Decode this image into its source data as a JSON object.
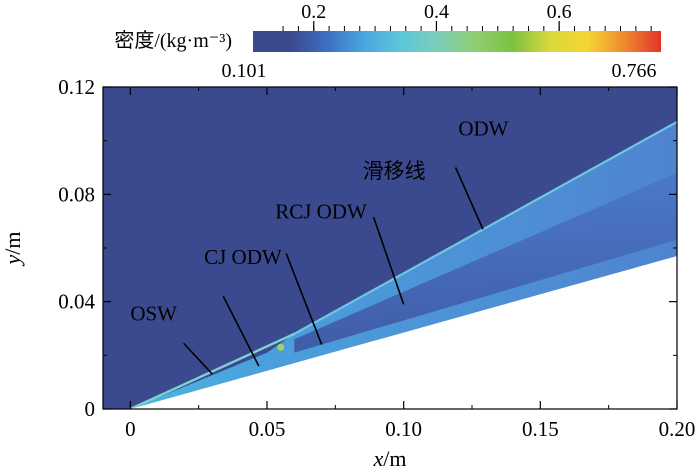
{
  "chart_data": {
    "type": "heatmap",
    "title": "",
    "xlabel": {
      "var": "x",
      "unit": "/m"
    },
    "ylabel": {
      "var": "y",
      "unit": "/m"
    },
    "xlim": [
      -0.01,
      0.2
    ],
    "ylim": [
      0,
      0.12
    ],
    "xticks": [
      {
        "v": 0,
        "label": "0"
      },
      {
        "v": 0.05,
        "label": "0.05"
      },
      {
        "v": 0.1,
        "label": "0.10"
      },
      {
        "v": 0.15,
        "label": "0.15"
      },
      {
        "v": 0.2,
        "label": "0.20"
      }
    ],
    "yticks": [
      {
        "v": 0,
        "label": "0"
      },
      {
        "v": 0.04,
        "label": "0.04"
      },
      {
        "v": 0.08,
        "label": "0.08"
      },
      {
        "v": 0.12,
        "label": "0.12"
      }
    ],
    "colorbar": {
      "label": "密度/(kg·m⁻³)",
      "min": 0.101,
      "max": 0.766,
      "min_label": "0.101",
      "max_label": "0.766",
      "ticks": [
        {
          "v": 0.2,
          "label": "0.2"
        },
        {
          "v": 0.4,
          "label": "0.4"
        },
        {
          "v": 0.6,
          "label": "0.6"
        }
      ],
      "colors": [
        "#3b4a8f",
        "#3b4a8f",
        "#3d6fc2",
        "#4aa6e0",
        "#5cc8d8",
        "#7ccdb8",
        "#8fcf72",
        "#7cc242",
        "#d8d83a",
        "#f5d635",
        "#f08a2e",
        "#e2352a"
      ]
    },
    "regions": {
      "ambient_density": 0.101,
      "wedge_surface": [
        [
          0,
          0
        ],
        [
          0.2,
          0.057
        ]
      ],
      "wave_front": [
        [
          0,
          0
        ],
        [
          0.05,
          0.021
        ],
        [
          0.06,
          0.028
        ],
        [
          0.2,
          0.107
        ]
      ]
    },
    "annotations": [
      {
        "label": "OSW",
        "text_at": [
          0.0,
          0.033
        ],
        "points_to": [
          0.03,
          0.013
        ]
      },
      {
        "label": "CJ ODW",
        "text_at": [
          0.027,
          0.054
        ],
        "points_to": [
          0.047,
          0.016
        ]
      },
      {
        "label": "RCJ ODW",
        "text_at": [
          0.053,
          0.071
        ],
        "points_to": [
          0.07,
          0.024
        ]
      },
      {
        "label": "滑移线",
        "text_at": [
          0.085,
          0.086
        ],
        "points_to": [
          0.1,
          0.039
        ]
      },
      {
        "label": "ODW",
        "text_at": [
          0.12,
          0.102
        ],
        "points_to": [
          0.129,
          0.067
        ]
      }
    ]
  }
}
